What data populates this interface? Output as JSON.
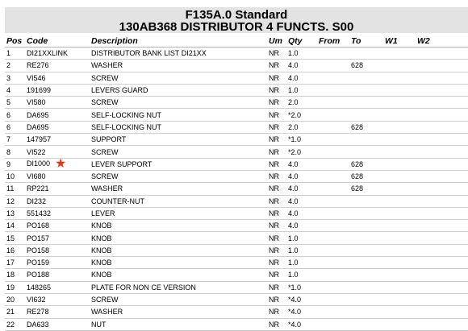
{
  "header": {
    "line1": "F135A.0 Standard",
    "line2": "130AB368 DISTRIBUTOR 4 FUNCTS.  S00"
  },
  "columns": {
    "pos": "Pos",
    "code": "Code",
    "description": "Description",
    "um": "Um",
    "qty": "Qty",
    "from": "From",
    "to": "To",
    "w1": "W1",
    "w2": "W2"
  },
  "marker_color": "#e8380d",
  "rows": [
    {
      "pos": "1",
      "code": "DI21XXLINK",
      "description": "DISTRIBUTOR BANK LIST DI21XX",
      "um": "NR",
      "qty": "1.0",
      "to": ""
    },
    {
      "pos": "2",
      "code": "RE276",
      "description": "WASHER",
      "um": "NR",
      "qty": "4.0",
      "to": "628"
    },
    {
      "pos": "3",
      "code": "VI546",
      "description": "SCREW",
      "um": "NR",
      "qty": "4.0",
      "to": ""
    },
    {
      "pos": "4",
      "code": "191699",
      "description": "LEVERS GUARD",
      "um": "NR",
      "qty": "1.0",
      "to": ""
    },
    {
      "pos": "5",
      "code": "VI580",
      "description": "SCREW",
      "um": "NR",
      "qty": "2.0",
      "to": ""
    },
    {
      "pos": "6",
      "code": "DA695",
      "description": "SELF-LOCKING NUT",
      "um": "NR",
      "qty": "*2.0",
      "to": ""
    },
    {
      "pos": "6",
      "code": "DA695",
      "description": "SELF-LOCKING NUT",
      "um": "NR",
      "qty": "2.0",
      "to": "628"
    },
    {
      "pos": "7",
      "code": "147957",
      "description": "SUPPORT",
      "um": "NR",
      "qty": "*1.0",
      "to": ""
    },
    {
      "pos": "8",
      "code": "VI522",
      "description": "SCREW",
      "um": "NR",
      "qty": "*2.0",
      "to": ""
    },
    {
      "pos": "9",
      "code": "DI1000",
      "description": "LEVER SUPPORT",
      "um": "NR",
      "qty": "4.0",
      "to": "628",
      "star": true
    },
    {
      "pos": "10",
      "code": "VI680",
      "description": "SCREW",
      "um": "NR",
      "qty": "4.0",
      "to": "628"
    },
    {
      "pos": "11",
      "code": "RP221",
      "description": "WASHER",
      "um": "NR",
      "qty": "4.0",
      "to": "628"
    },
    {
      "pos": "12",
      "code": "DI232",
      "description": "COUNTER-NUT",
      "um": "NR",
      "qty": "4.0",
      "to": ""
    },
    {
      "pos": "13",
      "code": "551432",
      "description": "LEVER",
      "um": "NR",
      "qty": "4.0",
      "to": ""
    },
    {
      "pos": "14",
      "code": "PO168",
      "description": "KNOB",
      "um": "NR",
      "qty": "4.0",
      "to": ""
    },
    {
      "pos": "15",
      "code": "PO157",
      "description": "KNOB",
      "um": "NR",
      "qty": "1.0",
      "to": ""
    },
    {
      "pos": "16",
      "code": "PO158",
      "description": "KNOB",
      "um": "NR",
      "qty": "1.0",
      "to": ""
    },
    {
      "pos": "17",
      "code": "PO159",
      "description": "KNOB",
      "um": "NR",
      "qty": "1.0",
      "to": ""
    },
    {
      "pos": "18",
      "code": "PO188",
      "description": "KNOB",
      "um": "NR",
      "qty": "1.0",
      "to": ""
    },
    {
      "pos": "19",
      "code": "148265",
      "description": "PLATE FOR NON CE VERSION",
      "um": "NR",
      "qty": "*1.0",
      "to": ""
    },
    {
      "pos": "20",
      "code": "VI632",
      "description": "SCREW",
      "um": "NR",
      "qty": "*4.0",
      "to": ""
    },
    {
      "pos": "21",
      "code": "RE278",
      "description": "WASHER",
      "um": "NR",
      "qty": "*4.0",
      "to": ""
    },
    {
      "pos": "22",
      "code": "DA633",
      "description": "NUT",
      "um": "NR",
      "qty": "*4.0",
      "to": ""
    }
  ]
}
